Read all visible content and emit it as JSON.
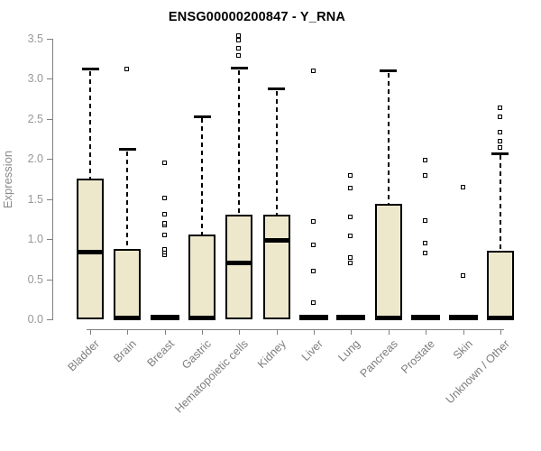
{
  "chart_data": {
    "type": "boxplot",
    "title": "ENSG00000200847 - Y_RNA",
    "ylabel": "Expression",
    "ylim": [
      0,
      3.5
    ],
    "yticks": [
      0,
      0.5,
      1.0,
      1.5,
      2.0,
      2.5,
      3.0,
      3.5
    ],
    "ytick_labels": [
      "0.0",
      "0.5",
      "1.0",
      "1.5",
      "2.0",
      "2.5",
      "3.0",
      "3.5"
    ],
    "grid": false,
    "legend": "none",
    "categories": [
      "Bladder",
      "Brain",
      "Breast",
      "Gastric",
      "Hematopoietic cells",
      "Kidney",
      "Liver",
      "Lung",
      "Pancreas",
      "Prostate",
      "Skin",
      "Unknown / Other"
    ],
    "boxes": [
      {
        "category": "Bladder",
        "q1": 0,
        "median": 0.84,
        "q3": 1.76,
        "whisker_low": 0,
        "whisker_high": 3.12,
        "outliers": []
      },
      {
        "category": "Brain",
        "q1": 0,
        "median": 0.02,
        "q3": 0.88,
        "whisker_low": 0,
        "whisker_high": 2.12,
        "outliers": [
          3.12
        ]
      },
      {
        "category": "Breast",
        "q1": 0,
        "median": 0.02,
        "q3": 0.02,
        "whisker_low": 0,
        "whisker_high": 0.02,
        "outliers": [
          0.8,
          0.83,
          0.87,
          1.05,
          1.17,
          1.19,
          1.31,
          1.51,
          1.95
        ]
      },
      {
        "category": "Gastric",
        "q1": 0,
        "median": 0.02,
        "q3": 1.06,
        "whisker_low": 0,
        "whisker_high": 2.53,
        "outliers": []
      },
      {
        "category": "Hematopoietic cells",
        "q1": 0,
        "median": 0.7,
        "q3": 1.31,
        "whisker_low": 0,
        "whisker_high": 3.13,
        "outliers": [
          3.29,
          3.38,
          3.48,
          3.53
        ]
      },
      {
        "category": "Kidney",
        "q1": 0,
        "median": 0.98,
        "q3": 1.3,
        "whisker_low": 0,
        "whisker_high": 2.87,
        "outliers": []
      },
      {
        "category": "Liver",
        "q1": 0,
        "median": 0.02,
        "q3": 0.02,
        "whisker_low": 0,
        "whisker_high": 0.02,
        "outliers": [
          0.2,
          0.6,
          0.92,
          1.21,
          3.09
        ]
      },
      {
        "category": "Lung",
        "q1": 0,
        "median": 0.02,
        "q3": 0.02,
        "whisker_low": 0,
        "whisker_high": 0.02,
        "outliers": [
          0.7,
          0.76,
          1.04,
          1.27,
          1.63,
          1.79
        ]
      },
      {
        "category": "Pancreas",
        "q1": 0,
        "median": 0.02,
        "q3": 1.44,
        "whisker_low": 0,
        "whisker_high": 3.1,
        "outliers": []
      },
      {
        "category": "Prostate",
        "q1": 0,
        "median": 0.02,
        "q3": 0.02,
        "whisker_low": 0,
        "whisker_high": 0.02,
        "outliers": [
          0.82,
          0.95,
          1.23,
          1.79,
          1.98
        ]
      },
      {
        "category": "Skin",
        "q1": 0,
        "median": 0.02,
        "q3": 0.02,
        "whisker_low": 0,
        "whisker_high": 0.02,
        "outliers": [
          0.54,
          1.64
        ]
      },
      {
        "category": "Unknown / Other",
        "q1": 0,
        "median": 0.02,
        "q3": 0.85,
        "whisker_low": 0,
        "whisker_high": 2.07,
        "outliers": [
          2.14,
          2.22,
          2.33,
          2.52,
          2.63
        ]
      }
    ],
    "colors": {
      "box_fill": "#EDE7CC",
      "box_border": "#000000",
      "median": "#000000",
      "whisker": "#000000",
      "axis": "#808080",
      "y_tick_text": "#989898",
      "x_tick_text": "#7D7D7D",
      "ylabel_text": "#8A8A8A",
      "title_text": "#000000",
      "background": "#FFFFFF"
    }
  }
}
